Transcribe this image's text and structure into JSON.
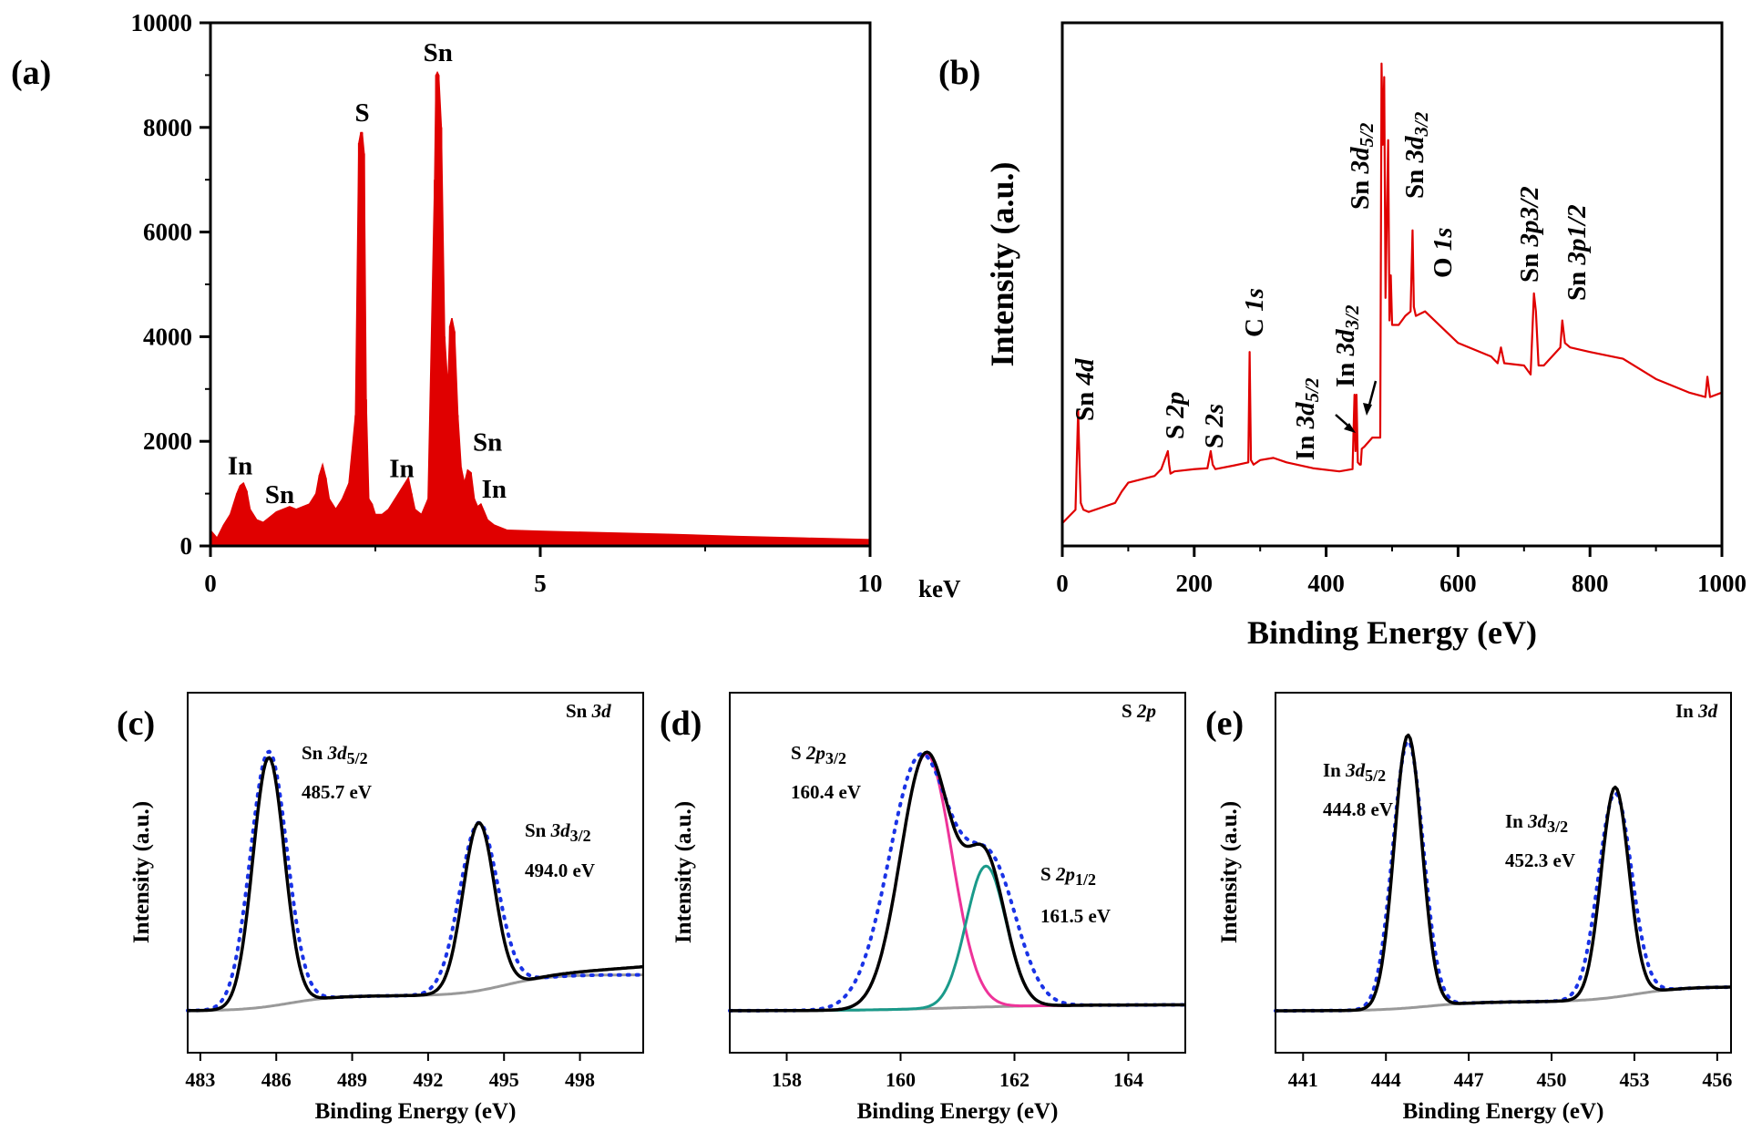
{
  "chart_data": [
    {
      "panel": "(a)",
      "type": "bar",
      "x_unit": "keV",
      "xlim": [
        0,
        10
      ],
      "ylim": [
        0,
        10000
      ],
      "xticks": [
        "0",
        "5",
        "10"
      ],
      "yticks": [
        "0",
        "2000",
        "4000",
        "6000",
        "8000",
        "10000"
      ],
      "color": "#e00000",
      "x": [
        0.0,
        0.1,
        0.2,
        0.3,
        0.4,
        0.45,
        0.5,
        0.55,
        0.6,
        0.7,
        0.8,
        0.9,
        1.0,
        1.1,
        1.2,
        1.3,
        1.4,
        1.5,
        1.6,
        1.65,
        1.7,
        1.75,
        1.8,
        1.9,
        2.0,
        2.1,
        2.2,
        2.25,
        2.28,
        2.3,
        2.33,
        2.36,
        2.4,
        2.45,
        2.5,
        2.6,
        2.7,
        2.8,
        2.9,
        3.0,
        3.05,
        3.1,
        3.2,
        3.3,
        3.4,
        3.42,
        3.44,
        3.46,
        3.5,
        3.55,
        3.6,
        3.63,
        3.66,
        3.7,
        3.75,
        3.8,
        3.85,
        3.9,
        3.95,
        4.0,
        4.05,
        4.1,
        4.15,
        4.2,
        4.3,
        4.4,
        4.5,
        5.0,
        6.0,
        7.0,
        8.0,
        9.0,
        10.0
      ],
      "values": [
        300,
        150,
        400,
        600,
        1000,
        1150,
        1200,
        1050,
        700,
        500,
        450,
        550,
        650,
        700,
        750,
        700,
        750,
        800,
        1000,
        1350,
        1550,
        1300,
        900,
        700,
        900,
        1200,
        2500,
        7700,
        7900,
        7900,
        7500,
        2800,
        900,
        800,
        600,
        600,
        700,
        900,
        1100,
        1300,
        1000,
        700,
        600,
        900,
        7000,
        9000,
        9050,
        9000,
        8000,
        4000,
        3000,
        4200,
        4350,
        4100,
        2500,
        1500,
        1200,
        1450,
        1400,
        900,
        750,
        800,
        650,
        500,
        400,
        350,
        300,
        280,
        250,
        220,
        180,
        150,
        120
      ],
      "labels": [
        {
          "text": "In",
          "x": 0.45,
          "y": 1300
        },
        {
          "text": "Sn",
          "x": 1.05,
          "y": 750
        },
        {
          "text": "S",
          "x": 2.3,
          "y": 8050
        },
        {
          "text": "Sn",
          "x": 3.45,
          "y": 9200
        },
        {
          "text": "In",
          "x": 2.9,
          "y": 1250
        },
        {
          "text": "Sn",
          "x": 4.2,
          "y": 1750
        },
        {
          "text": "In",
          "x": 4.3,
          "y": 850
        }
      ]
    },
    {
      "panel": "(b)",
      "type": "line",
      "xlabel": "Binding Energy (eV)",
      "ylabel": "Intensity (a.u.)",
      "xlim": [
        0,
        1000
      ],
      "xticks": [
        "0",
        "200",
        "400",
        "600",
        "800",
        "1000"
      ],
      "color": "#e00000",
      "x": [
        0,
        10,
        20,
        24,
        26,
        28,
        32,
        40,
        60,
        80,
        90,
        100,
        140,
        150,
        160,
        162,
        164,
        170,
        200,
        220,
        225,
        228,
        232,
        260,
        282,
        284,
        286,
        290,
        300,
        320,
        340,
        380,
        420,
        440,
        443,
        444.5,
        446,
        448,
        451,
        452.5,
        454,
        458,
        470,
        482,
        484,
        486,
        488,
        490,
        494,
        496,
        498,
        500,
        510,
        520,
        528,
        531,
        533,
        536,
        550,
        600,
        650,
        660,
        665,
        670,
        700,
        710,
        715,
        718,
        722,
        730,
        755,
        758,
        762,
        770,
        800,
        850,
        900,
        950,
        975,
        978,
        982,
        1000
      ],
      "y": [
        10,
        25,
        40,
        260,
        150,
        55,
        40,
        35,
        45,
        55,
        80,
        100,
        115,
        130,
        170,
        140,
        120,
        125,
        130,
        132,
        170,
        140,
        130,
        138,
        145,
        390,
        150,
        140,
        150,
        155,
        145,
        132,
        125,
        130,
        295,
        170,
        295,
        145,
        140,
        140,
        175,
        180,
        200,
        200,
        1030,
        850,
        1000,
        510,
        860,
        460,
        560,
        450,
        450,
        470,
        480,
        660,
        490,
        470,
        480,
        410,
        380,
        365,
        400,
        365,
        360,
        340,
        520,
        480,
        360,
        360,
        400,
        460,
        410,
        400,
        390,
        375,
        330,
        300,
        290,
        335,
        290,
        300
      ],
      "labels": [
        {
          "text": "Sn 4d"
        },
        {
          "text": "S 2p"
        },
        {
          "text": "S 2s"
        },
        {
          "text": "C 1s"
        },
        {
          "text": "In 3d5/2"
        },
        {
          "text": "In 3d3/2"
        },
        {
          "text": "Sn 3d5/2"
        },
        {
          "text": "Sn 3d3/2"
        },
        {
          "text": "O 1s"
        },
        {
          "text": "Sn 3p3/2"
        },
        {
          "text": "Sn 3p1/2"
        }
      ]
    },
    {
      "panel": "(c)",
      "type": "line",
      "title": "Sn 3d",
      "xlabel": "Binding Energy (eV)",
      "ylabel": "Intensity (a.u.)",
      "xlim": [
        482.5,
        500.5
      ],
      "xticks": [
        483,
        486,
        489,
        492,
        495,
        498
      ],
      "series": [
        {
          "style": "fit",
          "color": "#000000",
          "peaks": [
            {
              "center": 485.7,
              "height": 0.83,
              "sigma": 0.62
            },
            {
              "center": 494.0,
              "height": 0.56,
              "sigma": 0.62
            }
          ]
        },
        {
          "style": "raw",
          "color": "#1a33e6",
          "peaks": [
            {
              "center": 485.7,
              "height": 0.85,
              "sigma": 0.72
            },
            {
              "center": 494.0,
              "height": 0.56,
              "sigma": 0.75
            }
          ]
        },
        {
          "style": "background",
          "color": "#999999",
          "steps": [
            {
              "center": 486.5,
              "height": 0.05
            },
            {
              "center": 495.0,
              "height": 0.07
            }
          ]
        }
      ],
      "peak_labels": [
        {
          "name": "Sn 3d5/2",
          "value": "485.7 eV"
        },
        {
          "name": "Sn 3d3/2",
          "value": "494.0 eV"
        }
      ]
    },
    {
      "panel": "(d)",
      "type": "line",
      "title": "S 2p",
      "xlabel": "Binding Energy (eV)",
      "ylabel": "Intensity (a.u.)",
      "xlim": [
        157,
        165
      ],
      "xticks": [
        158,
        160,
        162,
        164
      ],
      "series": [
        {
          "style": "component",
          "color": "#ee3399",
          "peaks": [
            {
              "center": 160.45,
              "height": 0.85,
              "sigma": 0.45
            }
          ]
        },
        {
          "style": "component",
          "color": "#1a9a8a",
          "peaks": [
            {
              "center": 161.5,
              "height": 0.47,
              "sigma": 0.35
            }
          ]
        },
        {
          "style": "fit",
          "color": "#000000",
          "peaks": [
            {
              "center": 160.45,
              "height": 0.85,
              "sigma": 0.45
            },
            {
              "center": 161.5,
              "height": 0.47,
              "sigma": 0.35
            }
          ]
        },
        {
          "style": "raw",
          "color": "#1a33e6",
          "peaks": [
            {
              "center": 160.35,
              "height": 0.84,
              "sigma": 0.55
            },
            {
              "center": 161.6,
              "height": 0.45,
              "sigma": 0.45
            }
          ]
        },
        {
          "style": "background",
          "color": "#999999",
          "steps": [
            {
              "center": 161.0,
              "height": 0.02
            }
          ]
        }
      ],
      "peak_labels": [
        {
          "name": "S 2p3/2",
          "value": "160.4 eV"
        },
        {
          "name": "S 2p1/2",
          "value": "161.5 eV"
        }
      ]
    },
    {
      "panel": "(e)",
      "type": "line",
      "title": "In 3d",
      "xlabel": "Binding Energy (eV)",
      "ylabel": "Intensity (a.u.)",
      "xlim": [
        440,
        456.5
      ],
      "xticks": [
        441,
        444,
        447,
        450,
        453,
        456
      ],
      "series": [
        {
          "style": "fit",
          "color": "#000000",
          "peaks": [
            {
              "center": 444.8,
              "height": 0.91,
              "sigma": 0.5
            },
            {
              "center": 452.3,
              "height": 0.7,
              "sigma": 0.5
            }
          ]
        },
        {
          "style": "raw",
          "color": "#1a33e6",
          "peaks": [
            {
              "center": 444.8,
              "height": 0.89,
              "sigma": 0.55
            },
            {
              "center": 452.3,
              "height": 0.68,
              "sigma": 0.6
            }
          ]
        },
        {
          "style": "background",
          "color": "#999999",
          "steps": [
            {
              "center": 445.5,
              "height": 0.03
            },
            {
              "center": 453.0,
              "height": 0.05
            }
          ]
        }
      ],
      "peak_labels": [
        {
          "name": "In 3d5/2",
          "value": "444.8 eV"
        },
        {
          "name": "In 3d3/2",
          "value": "452.3 eV"
        }
      ]
    }
  ],
  "text": {
    "panel_a": "(a)",
    "panel_b": "(b)",
    "panel_c": "(c)",
    "panel_d": "(d)",
    "panel_e": "(e)",
    "a_unit": "keV",
    "b_xlabel": "Binding Energy (eV)",
    "b_ylabel": "Intensity (a.u.)",
    "c_xlabel": "Binding Energy (eV)",
    "c_ylabel": "Intensity (a.u.)",
    "d_xlabel": "Binding Energy (eV)",
    "d_ylabel": "Intensity (a.u.)",
    "e_xlabel": "Binding Energy (eV)",
    "e_ylabel": "Intensity (a.u.)"
  }
}
